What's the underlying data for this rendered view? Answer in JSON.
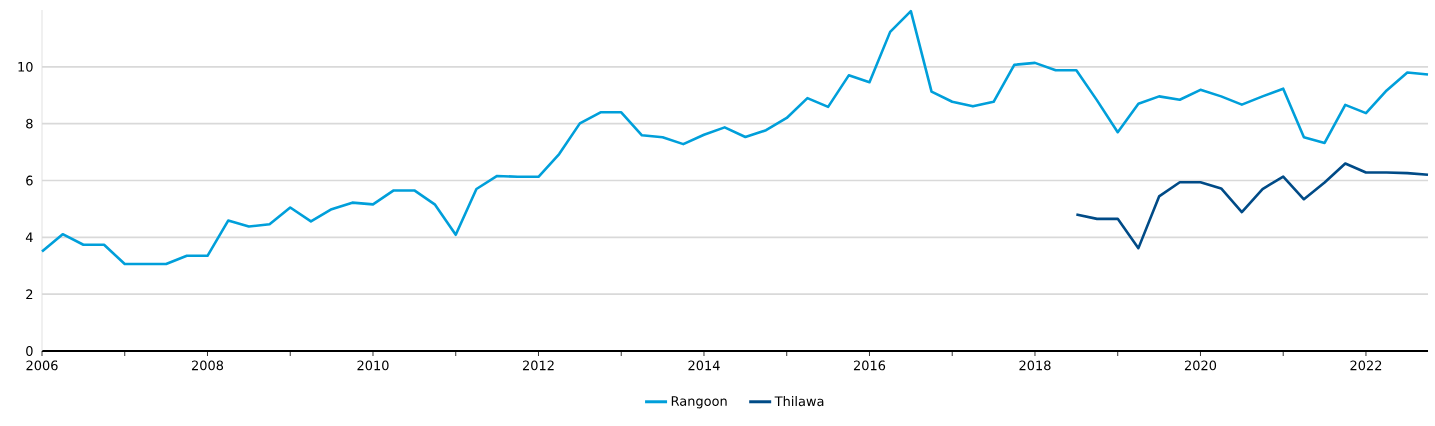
{
  "chart_data": {
    "type": "line",
    "x": [
      2006,
      2006.25,
      2006.5,
      2006.75,
      2007,
      2007.25,
      2007.5,
      2007.75,
      2008,
      2008.25,
      2008.5,
      2008.75,
      2009,
      2009.25,
      2009.5,
      2009.75,
      2010,
      2010.25,
      2010.5,
      2010.75,
      2011,
      2011.25,
      2011.5,
      2011.75,
      2012,
      2012.25,
      2012.5,
      2012.75,
      2013,
      2013.25,
      2013.5,
      2013.75,
      2014,
      2014.25,
      2014.5,
      2014.75,
      2015,
      2015.25,
      2015.5,
      2015.75,
      2016,
      2016.25,
      2016.5,
      2016.75,
      2017,
      2017.25,
      2017.5,
      2017.75,
      2018,
      2018.25,
      2018.5,
      2018.75,
      2019,
      2019.25,
      2019.5,
      2019.75,
      2020,
      2020.25,
      2020.5,
      2020.75,
      2021,
      2021.25,
      2021.5,
      2021.75,
      2022,
      2022.25,
      2022.5,
      2022.75
    ],
    "series": [
      {
        "name": "Rangoon",
        "color": "#009fda",
        "values": [
          3.5,
          4.11,
          3.74,
          3.74,
          3.06,
          3.06,
          3.06,
          3.35,
          3.35,
          4.59,
          4.38,
          4.46,
          5.05,
          4.56,
          4.99,
          5.22,
          5.16,
          5.65,
          5.65,
          5.15,
          4.09,
          5.7,
          6.16,
          6.13,
          6.13,
          6.93,
          8.01,
          8.4,
          8.4,
          7.59,
          7.52,
          7.28,
          7.61,
          7.87,
          7.53,
          7.77,
          8.2,
          8.9,
          8.59,
          9.7,
          9.46,
          11.23,
          11.96,
          9.13,
          8.77,
          8.61,
          8.77,
          10.07,
          10.14,
          9.88,
          9.88,
          8.82,
          7.7,
          8.7,
          8.96,
          8.84,
          9.19,
          8.96,
          8.67,
          8.96,
          9.23,
          7.52,
          7.32,
          8.66,
          8.37,
          9.17,
          9.8,
          9.73
        ]
      },
      {
        "name": "Thilawa",
        "color": "#004b87",
        "x": [
          2018.5,
          2018.75,
          2019,
          2019.25,
          2019.5,
          2019.75,
          2020,
          2020.25,
          2020.5,
          2020.75,
          2021,
          2021.25,
          2021.5,
          2021.75,
          2022,
          2022.25,
          2022.5,
          2022.75
        ],
        "values": [
          4.8,
          4.65,
          4.65,
          3.62,
          5.44,
          5.94,
          5.94,
          5.72,
          4.89,
          5.7,
          6.14,
          5.34,
          5.93,
          6.6,
          6.28,
          6.28,
          6.26,
          6.2
        ]
      }
    ],
    "xlim": [
      2006,
      2022.75
    ],
    "xticks": [
      2006,
      {
        "value": 2007,
        "label": null
      },
      2008,
      {
        "value": 2009,
        "label": null
      },
      2010,
      {
        "value": 2011,
        "label": null
      },
      2012,
      {
        "value": 2013,
        "label": null
      },
      2014,
      {
        "value": 2015,
        "label": null
      },
      2016,
      {
        "value": 2017,
        "label": null
      },
      2018,
      {
        "value": 2019,
        "label": null
      },
      2020,
      {
        "value": 2021,
        "label": null
      },
      2022
    ],
    "ylim": [
      0,
      12
    ],
    "yticks": [
      0,
      2,
      4,
      6,
      8,
      10
    ],
    "grid": "y",
    "legend": "bottom"
  }
}
